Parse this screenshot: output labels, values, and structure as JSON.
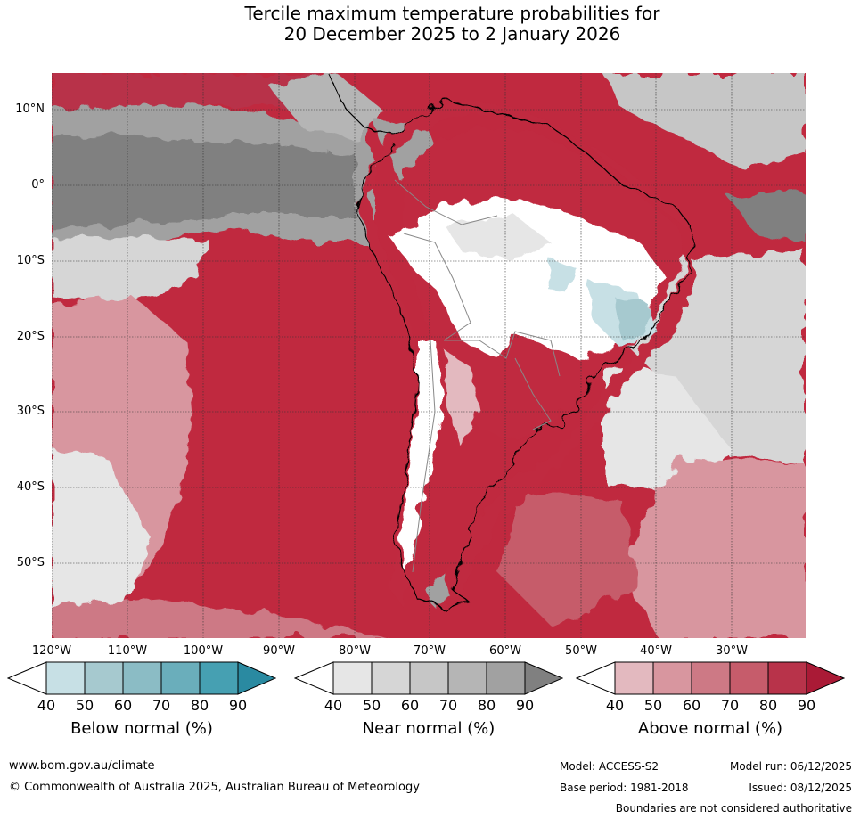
{
  "title": {
    "line1": "Tercile maximum temperature probabilities for",
    "line2": "20 December 2025 to 2 January 2026"
  },
  "map": {
    "lat_labels": [
      "10°N",
      "0°",
      "10°S",
      "20°S",
      "30°S",
      "40°S",
      "50°S"
    ],
    "lon_labels": [
      "120°W",
      "110°W",
      "100°W",
      "90°W",
      "80°W",
      "70°W",
      "60°W",
      "50°W",
      "40°W",
      "30°W"
    ],
    "colors": {
      "ocean_above": "#c0293f",
      "land_white": "#ffffff",
      "gridline": "#333333",
      "coast": "#000000",
      "border": "#888888"
    }
  },
  "colorbars": {
    "below": {
      "label": "Below normal (%)",
      "ticks": [
        "40",
        "50",
        "60",
        "70",
        "80",
        "90"
      ],
      "colors": [
        "#c7e0e5",
        "#a6c9cf",
        "#8bbcc5",
        "#6aaebb",
        "#46a0b2",
        "#2a8aa1"
      ]
    },
    "near": {
      "label": "Near normal (%)",
      "ticks": [
        "40",
        "50",
        "60",
        "70",
        "80",
        "90"
      ],
      "colors": [
        "#e6e6e6",
        "#d6d6d6",
        "#c6c6c6",
        "#b5b5b5",
        "#a1a1a1",
        "#808080"
      ]
    },
    "above": {
      "label": "Above normal (%)",
      "ticks": [
        "40",
        "50",
        "60",
        "70",
        "80",
        "90"
      ],
      "colors": [
        "#e3b9bf",
        "#d8969f",
        "#cd7985",
        "#c65c6b",
        "#b8334a",
        "#aa1a36"
      ]
    }
  },
  "footer": {
    "website": "www.bom.gov.au/climate",
    "copyright": "© Commonwealth of Australia 2025, Australian Bureau of Meteorology",
    "model": "Model: ACCESS-S2",
    "model_run": "Model run: 06/12/2025",
    "base_period": "Base period: 1981-2018",
    "issued": "Issued: 08/12/2025",
    "disclaimer": "Boundaries are not considered authoritative"
  }
}
